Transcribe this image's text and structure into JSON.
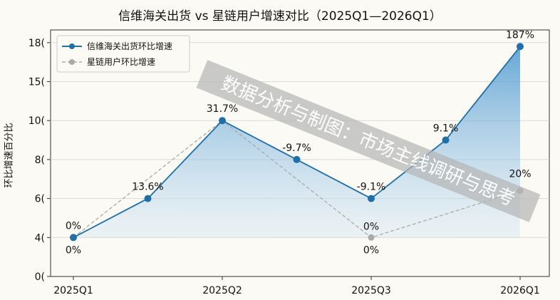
{
  "chart_data": {
    "type": "line",
    "title": "信维海关出货 vs 星链用户增速对比（2025Q1—2026Q1）",
    "ylabel": "环比增速百分比",
    "xlabel": "",
    "x_tick_labels": [
      "2025Q1",
      "2025Q2",
      "2025Q3",
      "2026Q1"
    ],
    "y_tick_labels": [
      "0(",
      "4(",
      "6(",
      "8(",
      "10(",
      "15(",
      "18("
    ],
    "grid": "horizontal",
    "legend_position": "top-left",
    "series": [
      {
        "name": "信维海关出货环比增速",
        "color": "#1f6fa8",
        "style": "solid",
        "area_fill": true,
        "points": [
          {
            "x": 0,
            "y": 1,
            "label": "0%"
          },
          {
            "x": 0.5,
            "y": 2,
            "label": "13.6%"
          },
          {
            "x": 1,
            "y": 4,
            "label": "31.7%"
          },
          {
            "x": 1.5,
            "y": 3,
            "label": "-9.7%"
          },
          {
            "x": 2,
            "y": 2,
            "label": "-9.1%"
          },
          {
            "x": 2.5,
            "y": 3.5,
            "label": "9.1%"
          },
          {
            "x": 3,
            "y": 5.9,
            "label": "187%"
          }
        ]
      },
      {
        "name": "星链用户环比增速",
        "color": "#aaaaaa",
        "style": "dashed",
        "area_fill": false,
        "points": [
          {
            "x": 0,
            "y": 1,
            "label": "0%"
          },
          {
            "x": 1,
            "y": 4,
            "label": ""
          },
          {
            "x": 2,
            "y": 1,
            "label": "0%"
          },
          {
            "x": 3,
            "y": 2.2,
            "label": "20%"
          }
        ]
      }
    ],
    "annotations": [
      "0%"
    ]
  },
  "watermark": "数据分析与制图：市场主线调研与思考"
}
